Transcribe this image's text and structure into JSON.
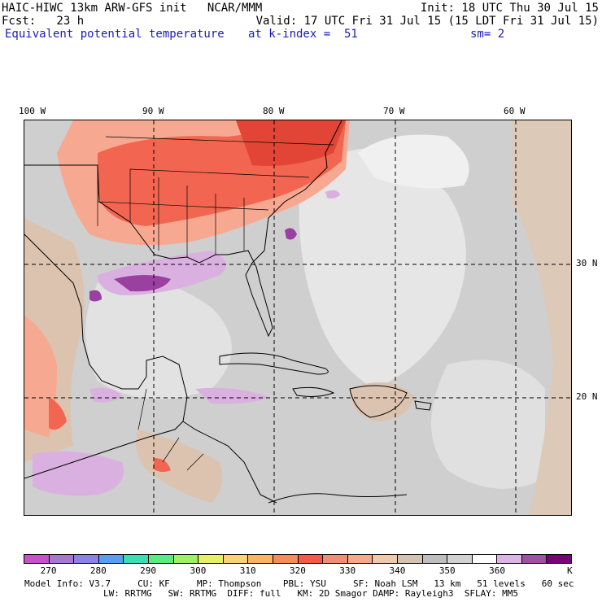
{
  "header": {
    "line1_left": "HAIC-HIWC 13km ARW-GFS init   NCAR/MMM",
    "line1_right": "Init: 18 UTC Thu 30 Jul 15",
    "line2_left": "Fcst:   23 h",
    "line2_right": "Valid: 17 UTC Fri 31 Jul 15 (15 LDT Fri 31 Jul 15)",
    "field": "Equivalent potential temperature",
    "level": "at k-index =  51",
    "smooth": "sm= 2"
  },
  "axes": {
    "lon_labels": [
      "100 W",
      "90 W",
      "80 W",
      "70 W",
      "60 W"
    ],
    "lat_labels": [
      "30 N",
      "20 N"
    ]
  },
  "colorbar": {
    "unit": "K",
    "tick_labels": [
      "270",
      "280",
      "290",
      "300",
      "310",
      "320",
      "330",
      "340",
      "350",
      "360"
    ],
    "colors": [
      "#c850c8",
      "#a878d0",
      "#8c82e6",
      "#5a9ef0",
      "#3cdcb4",
      "#5aeb82",
      "#a0f064",
      "#e6f064",
      "#fad278",
      "#fab464",
      "#f58c5a",
      "#f55a46",
      "#f08c78",
      "#f5aa8c",
      "#f0c8aa",
      "#d2c3b4",
      "#bebebe",
      "#d2d2d2",
      "#ffffff",
      "#dcb4e6",
      "#a050a0",
      "#780078"
    ]
  },
  "footer": {
    "line1": "Model Info: V3.7     CU: KF     MP: Thompson    PBL: YSU     SF: Noah LSM   13 km   51 levels   60 sec",
    "line2": "LW: RRTMG   SW: RRTMG  DIFF: full   KM: 2D Smagor DAMP: Rayleigh3  SFLAY: MM5"
  },
  "palette": {
    "ocean_gray": "#cfcfcf",
    "light_gray": "#e6e6e6",
    "warm_red": "#f26550",
    "salmon": "#f7a890",
    "tan": "#dcc3b0",
    "purple": "#9a40a0",
    "lavender": "#dab0e0"
  }
}
